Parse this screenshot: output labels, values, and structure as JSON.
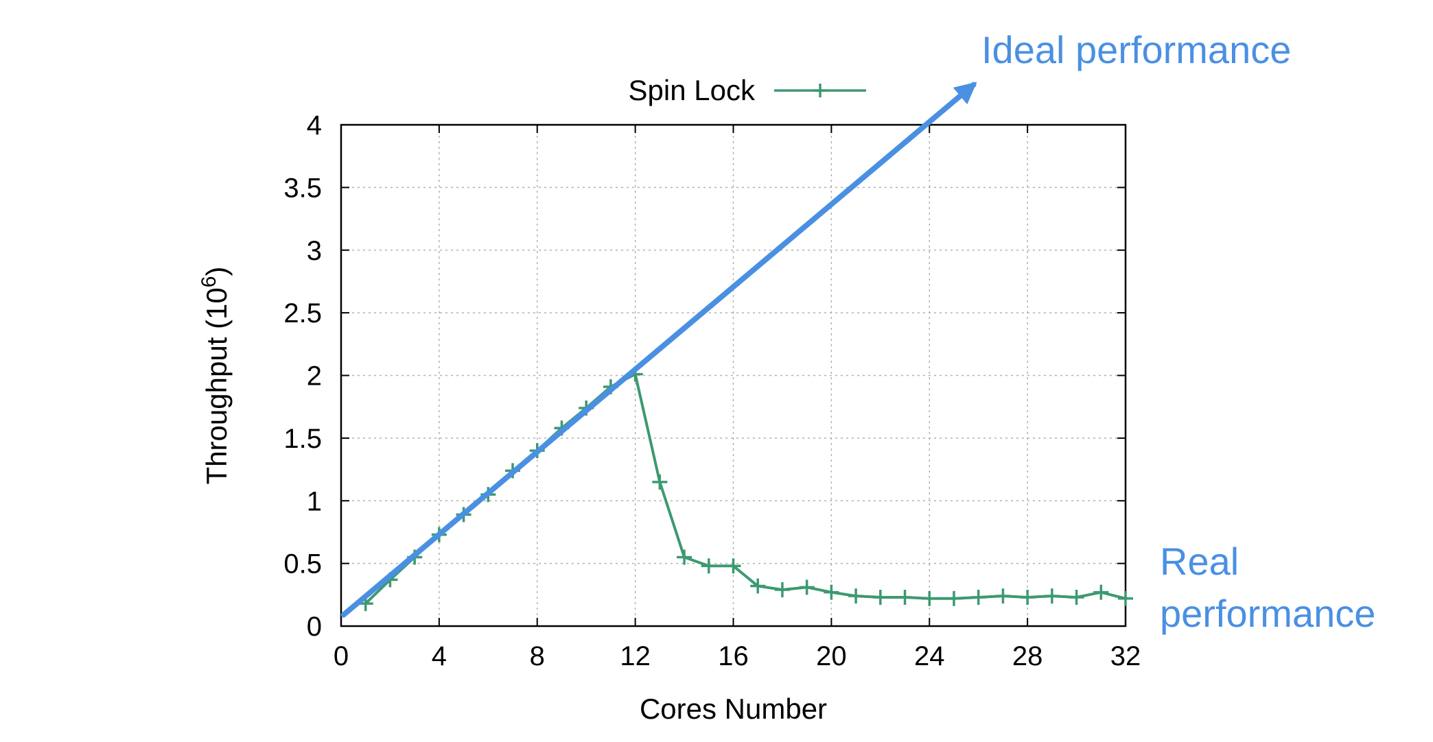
{
  "chart_data": {
    "type": "line",
    "xlabel": "Cores Number",
    "ylabel_main": "Throughput (10",
    "ylabel_exp": "6",
    "ylabel_close": ")",
    "xlim": [
      0,
      32
    ],
    "ylim": [
      0,
      4
    ],
    "x_ticks": [
      0,
      4,
      8,
      12,
      16,
      20,
      24,
      28,
      32
    ],
    "y_ticks": [
      0,
      0.5,
      1,
      1.5,
      2,
      2.5,
      3,
      3.5,
      4
    ],
    "grid": true,
    "legend_position": "top-center",
    "series": [
      {
        "name": "Spin Lock",
        "color": "#3d9970",
        "marker": "plus",
        "x": [
          1,
          2,
          3,
          4,
          5,
          6,
          7,
          8,
          9,
          10,
          11,
          12,
          13,
          14,
          15,
          16,
          17,
          18,
          19,
          20,
          21,
          22,
          23,
          24,
          25,
          26,
          27,
          28,
          29,
          30,
          31,
          32
        ],
        "y": [
          0.18,
          0.37,
          0.55,
          0.73,
          0.89,
          1.05,
          1.24,
          1.4,
          1.58,
          1.74,
          1.91,
          2.01,
          1.15,
          0.55,
          0.48,
          0.48,
          0.32,
          0.29,
          0.31,
          0.27,
          0.24,
          0.23,
          0.23,
          0.22,
          0.22,
          0.23,
          0.24,
          0.23,
          0.24,
          0.23,
          0.27,
          0.22
        ]
      }
    ],
    "annotations": [
      {
        "text": "Ideal performance",
        "color": "#4a90e2",
        "arrow_from": [
          0.1,
          0.09
        ],
        "arrow_to": [
          25.8,
          4.32
        ]
      },
      {
        "text_lines": [
          "Real",
          "performance"
        ],
        "color": "#4a90e2"
      }
    ]
  }
}
